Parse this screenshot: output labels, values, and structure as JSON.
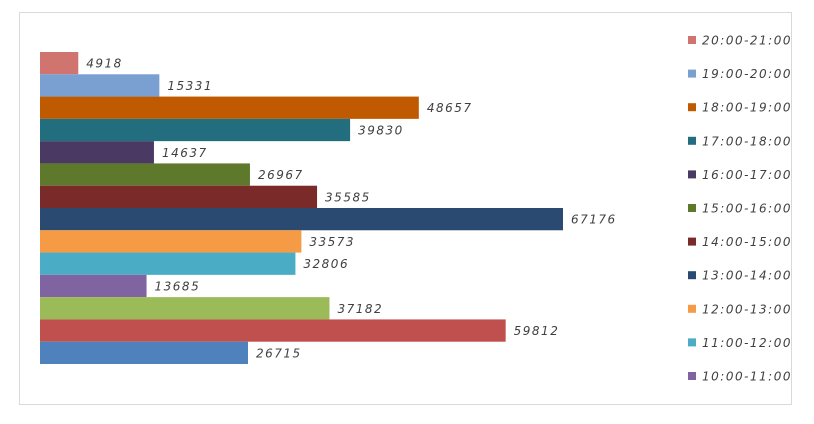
{
  "chart_data": {
    "type": "hbar",
    "series": [
      {
        "name": "20:00-21:00",
        "color": "#d07470",
        "values": [
          4918
        ]
      },
      {
        "name": "19:00-20:00",
        "color": "#7aa0d2",
        "values": [
          15331
        ]
      },
      {
        "name": "18:00-19:00",
        "color": "#bf5a00",
        "values": [
          48657
        ]
      },
      {
        "name": "17:00-18:00",
        "color": "#226e7e",
        "values": [
          39830
        ]
      },
      {
        "name": "16:00-17:00",
        "color": "#4a3a63",
        "values": [
          14637
        ]
      },
      {
        "name": "15:00-16:00",
        "color": "#5e782c",
        "values": [
          26967
        ]
      },
      {
        "name": "14:00-15:00",
        "color": "#7a2a28",
        "values": [
          35585
        ]
      },
      {
        "name": "13:00-14:00",
        "color": "#2a4a72",
        "values": [
          67176
        ]
      },
      {
        "name": "12:00-13:00",
        "color": "#f59a45",
        "values": [
          33573
        ]
      },
      {
        "name": "11:00-12:00",
        "color": "#4aacc5",
        "values": [
          32806
        ]
      },
      {
        "name": "10:00-11:00",
        "color": "#8064a2",
        "values": [
          13685
        ]
      },
      {
        "name": null,
        "color": "#9bbb59",
        "values": [
          37182
        ]
      },
      {
        "name": null,
        "color": "#c0504d",
        "values": [
          59812
        ]
      },
      {
        "name": null,
        "color": "#4f81bd",
        "values": [
          26715
        ]
      }
    ]
  }
}
